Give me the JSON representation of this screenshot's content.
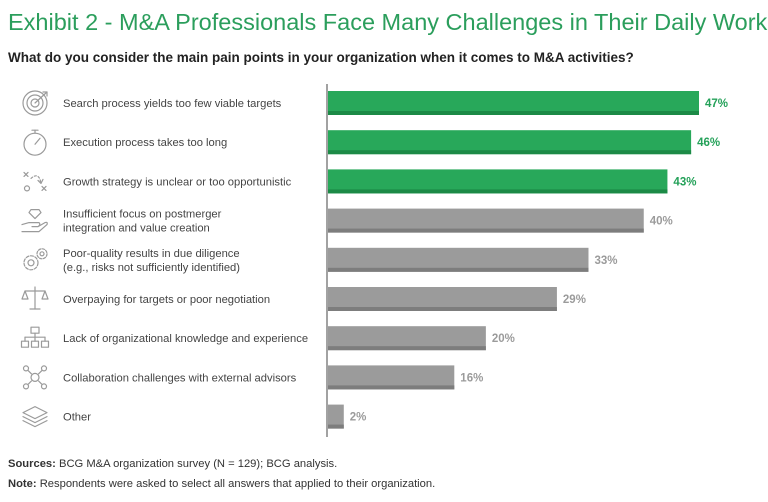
{
  "title": "Exhibit 2 - M&A Professionals Face Many Challenges in Their Daily Work",
  "subtitle": "What do you consider the main pain points in your organization when it comes to M&A activities?",
  "colors": {
    "title": "#2b9e5c",
    "highlight_bar": "#28a85a",
    "highlight_bar_shadow": "#1c8a46",
    "highlight_label": "#24a159",
    "neutral_bar": "#9b9b9b",
    "neutral_bar_shadow": "#7d7d7d",
    "neutral_label": "#9b9b9b",
    "icon": "#9a9a9a"
  },
  "chart_data": {
    "type": "bar",
    "orientation": "horizontal",
    "categories": [
      [
        "Search process yields too few viable targets"
      ],
      [
        "Execution process takes too long"
      ],
      [
        "Growth strategy is unclear or too opportunistic"
      ],
      [
        "Insufficient focus on postmerger",
        "integration and value creation"
      ],
      [
        "Poor-quality results in due diligence",
        "(e.g., risks not sufficiently identified)"
      ],
      [
        "Overpaying for targets or poor negotiation"
      ],
      [
        "Lack of organizational knowledge and experience"
      ],
      [
        "Collaboration challenges with external advisors"
      ],
      [
        "Other"
      ]
    ],
    "values": [
      47,
      46,
      43,
      40,
      33,
      29,
      20,
      16,
      2
    ],
    "value_labels": [
      "47%",
      "46%",
      "43%",
      "40%",
      "33%",
      "29%",
      "20%",
      "16%",
      "2%"
    ],
    "highlighted": [
      true,
      true,
      true,
      false,
      false,
      false,
      false,
      false,
      false
    ],
    "icons": [
      "target-icon",
      "stopwatch-icon",
      "strategy-play-icon",
      "hand-diamond-icon",
      "gears-icon",
      "scales-icon",
      "org-chart-icon",
      "network-icon",
      "layers-icon"
    ],
    "xlim": [
      0,
      47
    ],
    "unit": "%",
    "grid": false,
    "legend": "none"
  },
  "footnotes": {
    "sources_label": "Sources:",
    "sources_text": " BCG M&A organization survey (N = 129); BCG analysis.",
    "note_label": "Note:",
    "note_text": " Respondents were asked to select all answers that applied to their organization."
  }
}
